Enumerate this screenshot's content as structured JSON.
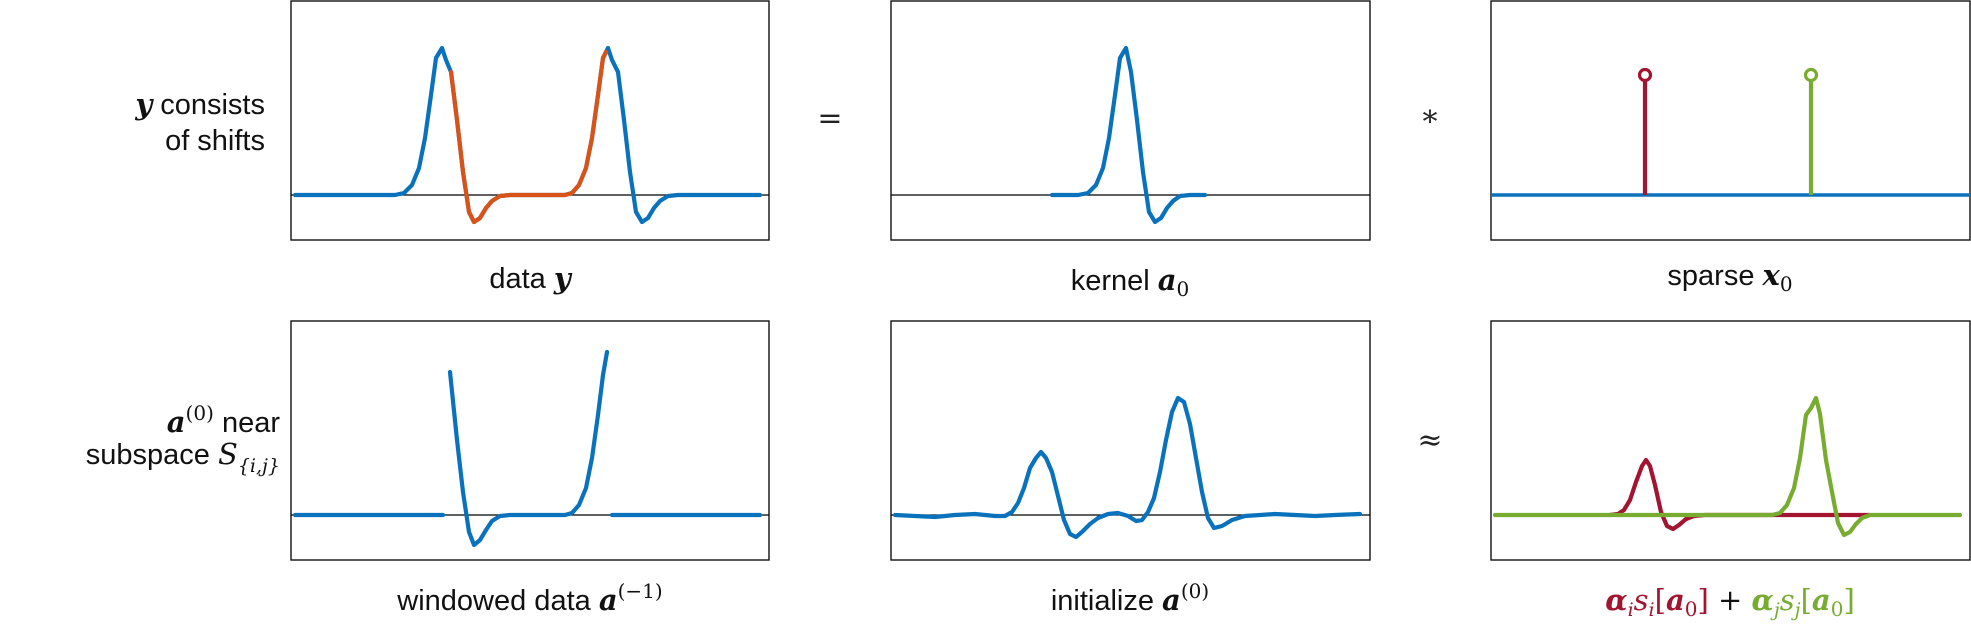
{
  "colors": {
    "blue": "#0a72bd",
    "orange": "#d95319",
    "red": "#a2142f",
    "green": "#77ac30",
    "frame": "#111111",
    "baseline": "#000000",
    "text": "#111111"
  },
  "row_labels": {
    "top_line1_sym": "y",
    "top_line1_text": " consists",
    "top_line2": "of shifts",
    "bottom_line1_sym": "a",
    "bottom_line1_sup": "(0)",
    "bottom_line1_text": " near",
    "bottom_line2_text": "subspace ",
    "bottom_line2_sym": "S",
    "bottom_line2_sub": "{i,j}"
  },
  "operators": {
    "equals": "=",
    "convolve": "*",
    "approx": "≈"
  },
  "captions": {
    "data": {
      "text": "data ",
      "sym": "y"
    },
    "kernel": {
      "text": "kernel ",
      "sym": "a",
      "sub": "0"
    },
    "sparse": {
      "text": "sparse ",
      "sym": "x",
      "sub": "0"
    },
    "windowed": {
      "text": "windowed data ",
      "sym": "a",
      "sup": "(−1)"
    },
    "initialize": {
      "text": "initialize ",
      "sym": "a",
      "sup": "(0)"
    },
    "combo": {
      "alpha_i": "α",
      "i_sub": "i",
      "s_i": "s",
      "s_i_sub": "i",
      "bracket_open": "[",
      "a": "a",
      "zero": "0",
      "bracket_close": "]",
      "plus": " + ",
      "alpha_j": "α",
      "j_sub": "j",
      "s_j": "s",
      "s_j_sub": "j"
    }
  }
}
